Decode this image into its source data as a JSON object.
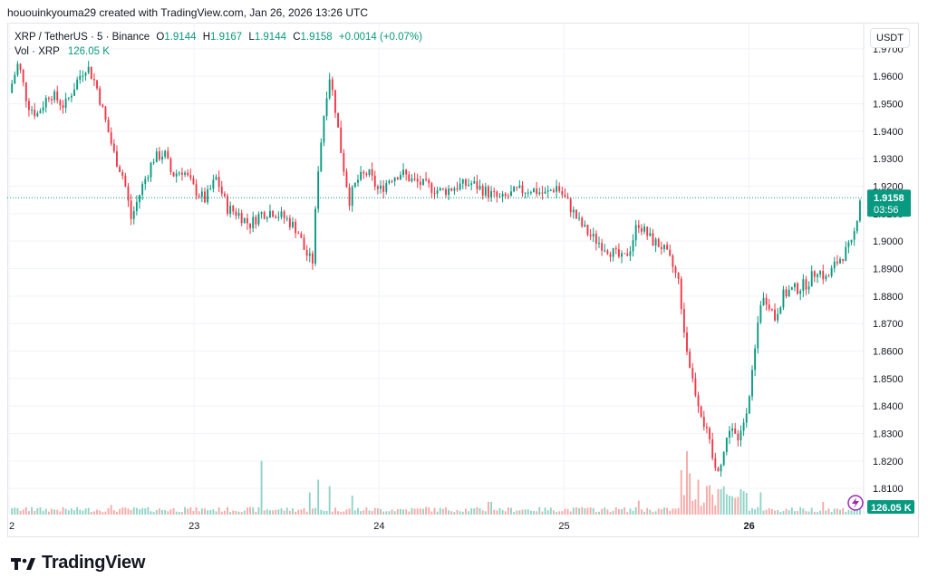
{
  "header": {
    "text": "hououinkyouma29 created with TradingView.com, Jan 26, 2026 13:26 UTC"
  },
  "legend": {
    "symbol": "XRP / TetherUS · 5 · Binance",
    "open_label": "O",
    "open": "1.9144",
    "high_label": "H",
    "high": "1.9167",
    "low_label": "L",
    "low": "1.9144",
    "close_label": "C",
    "close": "1.9158",
    "change": "+0.0014 (+0.07%)",
    "vol_label": "Vol · XRP",
    "vol_value": "126.05 K"
  },
  "currency_button": "USDT",
  "price_tag": {
    "price": "1.9158",
    "countdown": "03:56"
  },
  "volume_tag": "126.05 K",
  "logo_text": "TradingView",
  "colors": {
    "up": "#089981",
    "down": "#f23645",
    "grid": "#f0f3fa",
    "text": "#131722",
    "up_volume": "#8fd3c6",
    "down_volume": "#f7a9a7"
  },
  "chart_data": {
    "type": "candlestick",
    "interval": "5",
    "y_ticks": [
      "1.9700",
      "1.9600",
      "1.9500",
      "1.9400",
      "1.9300",
      "1.9200",
      "1.9100",
      "1.9000",
      "1.8900",
      "1.8800",
      "1.8700",
      "1.8600",
      "1.8500",
      "1.8400",
      "1.8300",
      "1.8200",
      "1.8100"
    ],
    "ylim": [
      1.8005,
      1.9795
    ],
    "x_ticks": [
      "2",
      "23",
      "24",
      "25",
      "26"
    ],
    "x_tick_days": [
      22,
      23,
      24,
      25,
      26
    ],
    "xlim_days": [
      21.99,
      26.62
    ],
    "grid": true,
    "last_price": 1.9158,
    "price_path": [
      [
        22.0,
        1.954
      ],
      [
        22.05,
        1.965
      ],
      [
        22.1,
        1.95
      ],
      [
        22.15,
        1.946
      ],
      [
        22.22,
        1.954
      ],
      [
        22.3,
        1.949
      ],
      [
        22.38,
        1.96
      ],
      [
        22.42,
        1.964
      ],
      [
        22.47,
        1.957
      ],
      [
        22.52,
        1.944
      ],
      [
        22.57,
        1.931
      ],
      [
        22.62,
        1.923
      ],
      [
        22.66,
        1.908
      ],
      [
        22.72,
        1.92
      ],
      [
        22.78,
        1.93
      ],
      [
        22.84,
        1.932
      ],
      [
        22.88,
        1.924
      ],
      [
        22.94,
        1.926
      ],
      [
        23.0,
        1.919
      ],
      [
        23.06,
        1.915
      ],
      [
        23.12,
        1.923
      ],
      [
        23.18,
        1.912
      ],
      [
        23.24,
        1.91
      ],
      [
        23.3,
        1.906
      ],
      [
        23.36,
        1.91
      ],
      [
        23.42,
        1.911
      ],
      [
        23.5,
        1.908
      ],
      [
        23.56,
        1.904
      ],
      [
        23.6,
        1.896
      ],
      [
        23.64,
        1.892
      ],
      [
        23.67,
        1.926
      ],
      [
        23.7,
        1.945
      ],
      [
        23.73,
        1.961
      ],
      [
        23.76,
        1.95
      ],
      [
        23.8,
        1.93
      ],
      [
        23.84,
        1.915
      ],
      [
        23.88,
        1.922
      ],
      [
        23.94,
        1.925
      ],
      [
        24.0,
        1.918
      ],
      [
        24.06,
        1.923
      ],
      [
        24.12,
        1.925
      ],
      [
        24.18,
        1.922
      ],
      [
        24.26,
        1.92
      ],
      [
        24.34,
        1.918
      ],
      [
        24.42,
        1.92
      ],
      [
        24.5,
        1.921
      ],
      [
        24.58,
        1.918
      ],
      [
        24.66,
        1.915
      ],
      [
        24.74,
        1.918
      ],
      [
        24.82,
        1.919
      ],
      [
        24.9,
        1.917
      ],
      [
        24.96,
        1.92
      ],
      [
        25.02,
        1.914
      ],
      [
        25.08,
        1.907
      ],
      [
        25.14,
        1.902
      ],
      [
        25.2,
        1.899
      ],
      [
        25.26,
        1.896
      ],
      [
        25.32,
        1.893
      ],
      [
        25.36,
        1.898
      ],
      [
        25.4,
        1.907
      ],
      [
        25.44,
        1.903
      ],
      [
        25.48,
        1.9
      ],
      [
        25.53,
        1.898
      ],
      [
        25.58,
        1.892
      ],
      [
        25.62,
        1.885
      ],
      [
        25.66,
        1.862
      ],
      [
        25.7,
        1.848
      ],
      [
        25.74,
        1.838
      ],
      [
        25.78,
        1.828
      ],
      [
        25.82,
        1.816
      ],
      [
        25.86,
        1.822
      ],
      [
        25.9,
        1.834
      ],
      [
        25.94,
        1.826
      ],
      [
        25.98,
        1.837
      ],
      [
        26.02,
        1.852
      ],
      [
        26.06,
        1.878
      ],
      [
        26.1,
        1.879
      ],
      [
        26.14,
        1.872
      ],
      [
        26.18,
        1.88
      ],
      [
        26.22,
        1.882
      ],
      [
        26.27,
        1.883
      ],
      [
        26.32,
        1.885
      ],
      [
        26.37,
        1.89
      ],
      [
        26.42,
        1.886
      ],
      [
        26.47,
        1.892
      ],
      [
        26.52,
        1.896
      ],
      [
        26.56,
        1.899
      ],
      [
        26.6,
        1.9158
      ]
    ],
    "volume_spikes": [
      [
        22.02,
        0.1
      ],
      [
        22.12,
        0.12
      ],
      [
        22.55,
        0.15
      ],
      [
        22.95,
        0.12
      ],
      [
        23.36,
        0.85
      ],
      [
        23.62,
        0.35
      ],
      [
        23.67,
        0.55
      ],
      [
        23.73,
        0.45
      ],
      [
        23.85,
        0.3
      ],
      [
        24.25,
        0.12
      ],
      [
        24.6,
        0.2
      ],
      [
        25.1,
        0.12
      ],
      [
        25.4,
        0.22
      ],
      [
        25.64,
        0.7
      ],
      [
        25.66,
        1.0
      ],
      [
        25.68,
        0.65
      ],
      [
        25.72,
        0.55
      ],
      [
        25.78,
        0.45
      ],
      [
        25.84,
        0.4
      ],
      [
        25.9,
        0.3
      ],
      [
        25.97,
        0.25
      ],
      [
        26.06,
        0.35
      ],
      [
        26.4,
        0.2
      ]
    ]
  }
}
